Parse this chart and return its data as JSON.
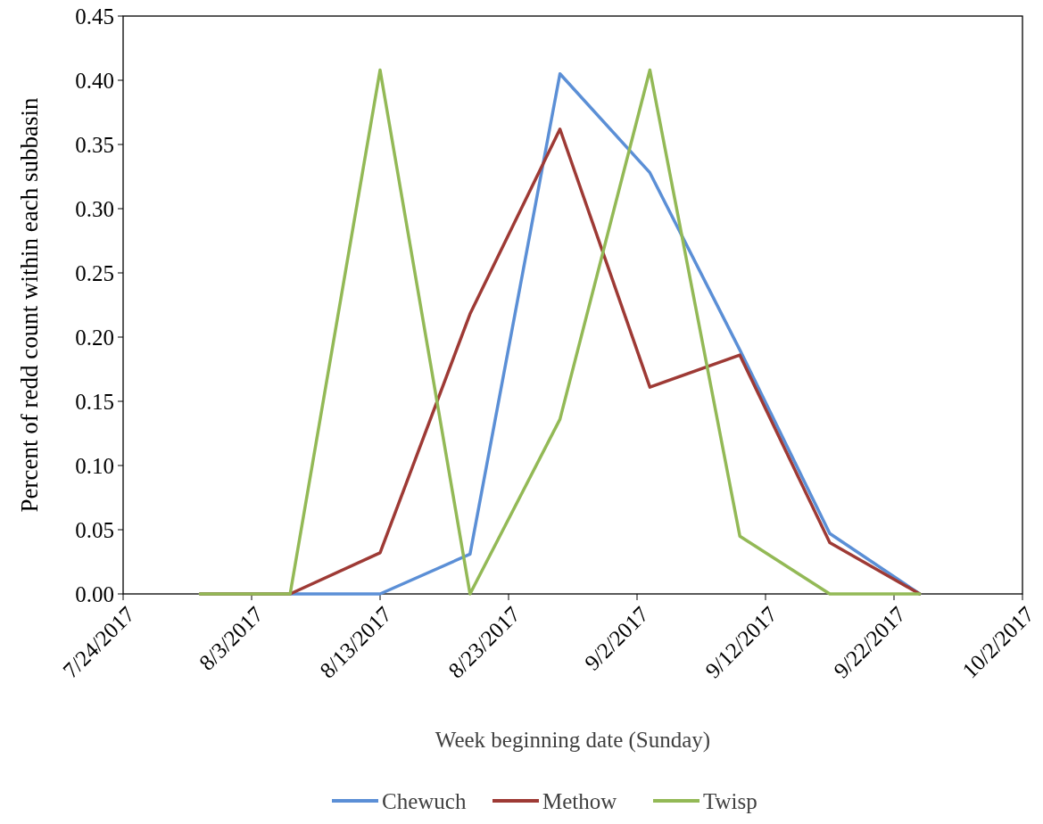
{
  "chart_data": {
    "type": "line",
    "xlabel": "Week beginning date (Sunday)",
    "ylabel": "Percent of redd count within each subbasin",
    "x": [
      "2017-07-30",
      "2017-08-06",
      "2017-08-13",
      "2017-08-20",
      "2017-08-27",
      "2017-09-03",
      "2017-09-10",
      "2017-09-17",
      "2017-09-24"
    ],
    "series": [
      {
        "name": "Chewuch",
        "color": "#5b8fd6",
        "values": [
          0,
          0,
          0,
          0.031,
          0.405,
          0.328,
          0.19,
          0.047,
          0
        ]
      },
      {
        "name": "Methow",
        "color": "#9e3a35",
        "values": [
          0,
          0,
          0.032,
          0.218,
          0.362,
          0.161,
          0.186,
          0.04,
          0
        ]
      },
      {
        "name": "Twisp",
        "color": "#93b956",
        "values": [
          0,
          0,
          0.408,
          0,
          0.136,
          0.408,
          0.045,
          0,
          0
        ]
      }
    ],
    "xlim": [
      "2017-07-24",
      "2017-10-02"
    ],
    "xticks": [
      {
        "value": "2017-07-24",
        "label": "7/24/2017"
      },
      {
        "value": "2017-08-03",
        "label": "8/3/2017"
      },
      {
        "value": "2017-08-13",
        "label": "8/13/2017"
      },
      {
        "value": "2017-08-23",
        "label": "8/23/2017"
      },
      {
        "value": "2017-09-02",
        "label": "9/2/2017"
      },
      {
        "value": "2017-09-12",
        "label": "9/12/2017"
      },
      {
        "value": "2017-09-22",
        "label": "9/22/2017"
      },
      {
        "value": "2017-10-02",
        "label": "10/2/2017"
      }
    ],
    "ylim": [
      0,
      0.45
    ],
    "yticks": [
      {
        "value": 0,
        "label": "0.00"
      },
      {
        "value": 0.05,
        "label": "0.05"
      },
      {
        "value": 0.1,
        "label": "0.10"
      },
      {
        "value": 0.15,
        "label": "0.15"
      },
      {
        "value": 0.2,
        "label": "0.20"
      },
      {
        "value": 0.25,
        "label": "0.25"
      },
      {
        "value": 0.3,
        "label": "0.30"
      },
      {
        "value": 0.35,
        "label": "0.35"
      },
      {
        "value": 0.4,
        "label": "0.40"
      },
      {
        "value": 0.45,
        "label": "0.45"
      }
    ],
    "grid": false,
    "legend": "bottom",
    "marker": "none",
    "line_style": "solid"
  }
}
